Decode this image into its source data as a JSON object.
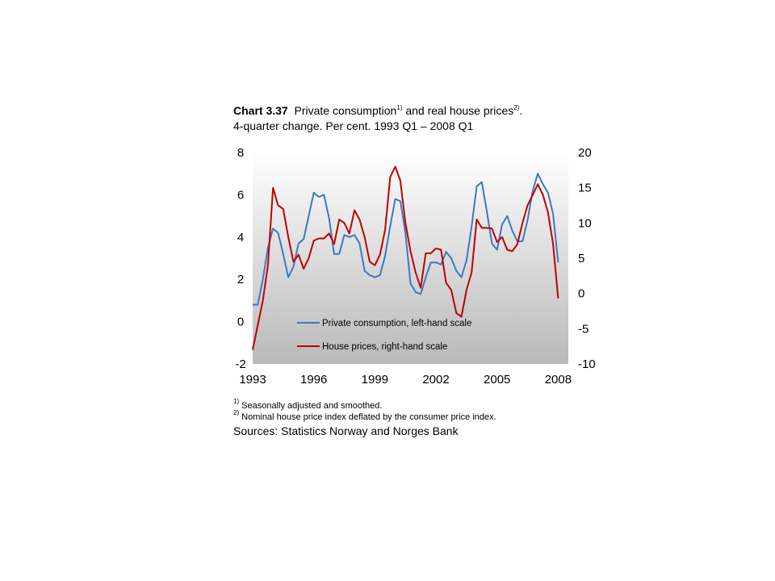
{
  "title": {
    "label": "Chart 3.37",
    "part1": "Private consumption",
    "sup1": "1)",
    "part2": " and real house prices",
    "sup2": "2)",
    "part3": ".",
    "line2": "4-quarter change. Per cent. 1993 Q1 – 2008 Q1"
  },
  "footnotes": [
    {
      "mark": "1)",
      "text": " Seasonally adjusted and smoothed."
    },
    {
      "mark": "2)",
      "text": " Nominal house price index deflated by the consumer price index."
    }
  ],
  "sources": "Sources: Statistics Norway and Norges Bank",
  "colors": {
    "consumption": "#3a7bbf",
    "house_prices": "#c00000"
  },
  "chart_data": {
    "type": "line",
    "x_start": "1993 Q1",
    "x_end": "2008 Q1",
    "xlim": [
      1993.0,
      2008.5
    ],
    "x_ticks": [
      "1993",
      "1996",
      "1999",
      "2002",
      "2005",
      "2008"
    ],
    "y_left": {
      "ylim": [
        -2,
        8
      ],
      "ticks": [
        "8",
        "6",
        "4",
        "2",
        "0",
        "-2"
      ]
    },
    "y_right": {
      "ylim": [
        -10,
        20
      ],
      "ticks": [
        "20",
        "15",
        "10",
        "5",
        "0",
        "-5",
        "-10"
      ]
    },
    "grid": false,
    "legend_position": "bottom-left (inside plot)",
    "series": [
      {
        "name": "Private consumption, left-hand scale",
        "axis": "left",
        "values": [
          0.8,
          0.8,
          2.0,
          3.5,
          4.4,
          4.2,
          3.2,
          2.1,
          2.6,
          3.7,
          3.9,
          5.0,
          6.1,
          5.9,
          6.0,
          4.9,
          3.2,
          3.2,
          4.1,
          4.0,
          4.1,
          3.7,
          2.4,
          2.2,
          2.1,
          2.2,
          3.1,
          4.5,
          5.8,
          5.7,
          4.2,
          1.8,
          1.4,
          1.3,
          2.1,
          2.8,
          2.8,
          2.7,
          3.3,
          3.0,
          2.4,
          2.1,
          2.9,
          4.5,
          6.4,
          6.6,
          5.2,
          3.7,
          3.4,
          4.6,
          5.0,
          4.3,
          3.8,
          3.8,
          4.8,
          6.2,
          7.0,
          6.5,
          6.1,
          5.1,
          2.8
        ]
      },
      {
        "name": "House prices, right-hand scale",
        "axis": "right",
        "values": [
          -8.0,
          -4.5,
          -1.0,
          4.0,
          15.0,
          12.5,
          12.0,
          8.0,
          4.5,
          5.5,
          3.5,
          5.0,
          7.5,
          7.8,
          7.8,
          8.5,
          7.0,
          10.5,
          10.0,
          8.5,
          11.8,
          10.5,
          8.0,
          4.5,
          4.0,
          5.5,
          9.0,
          16.5,
          18.0,
          16.0,
          10.0,
          6.0,
          3.0,
          0.8,
          5.7,
          5.7,
          6.4,
          6.2,
          1.5,
          0.5,
          -2.8,
          -3.3,
          0.5,
          3.0,
          10.5,
          9.3,
          9.3,
          9.2,
          7.3,
          8.0,
          6.2,
          6.0,
          7.0,
          10.0,
          12.5,
          14.0,
          15.5,
          14.0,
          11.5,
          7.0,
          -0.7
        ]
      }
    ]
  }
}
